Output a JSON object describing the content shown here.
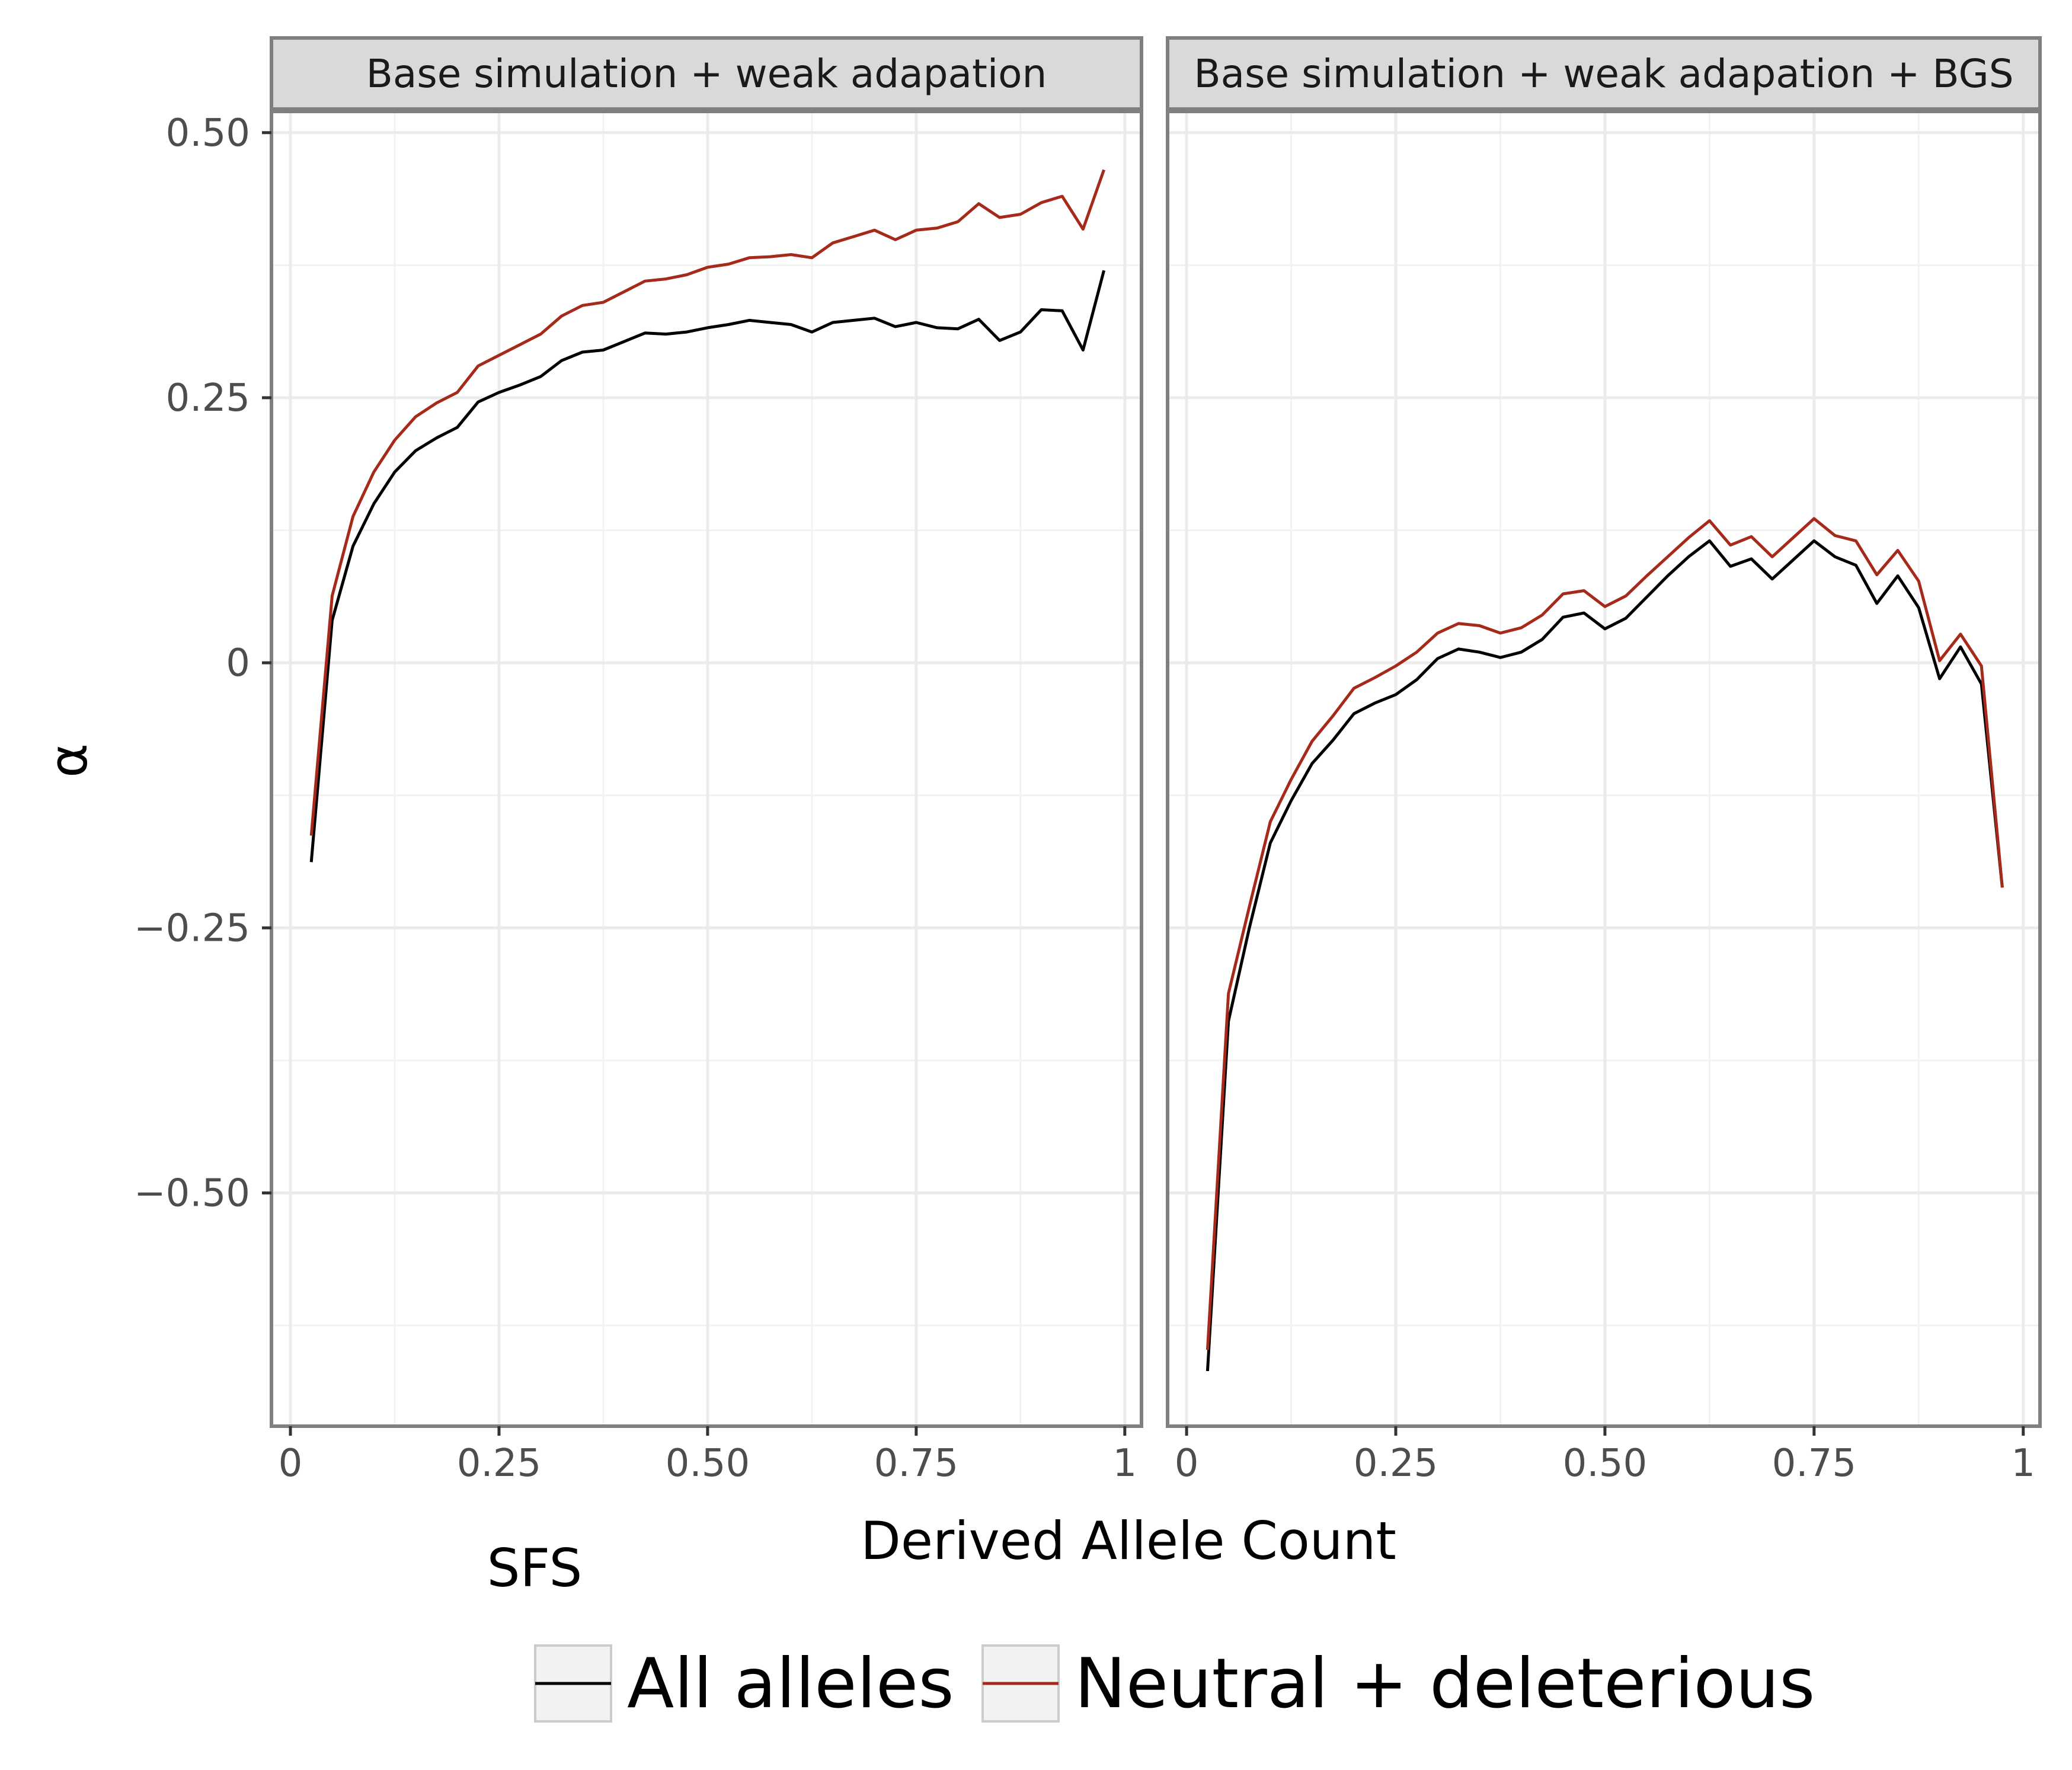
{
  "chart_data": {
    "type": "line",
    "xlabel": "Derived Allele Count",
    "ylabel": "α",
    "extra_label": "SFS",
    "xlim": [
      0,
      1
    ],
    "ylim": [
      -0.72,
      0.52
    ],
    "xticks": [
      0,
      0.25,
      0.5,
      0.75,
      1
    ],
    "xtick_labels": [
      "0",
      "0.25",
      "0.50",
      "0.75",
      "1"
    ],
    "yticks": [
      -0.5,
      -0.25,
      0,
      0.25,
      0.5
    ],
    "ytick_labels": [
      "−0.50",
      "−0.25",
      "0",
      "0.25",
      "0.50"
    ],
    "grid": true,
    "legend_position": "bottom",
    "legend": [
      {
        "name": "All alleles",
        "color": "#000000"
      },
      {
        "name": "Neutral + deleterious",
        "color": "#a52a1a"
      }
    ],
    "x": [
      0.025,
      0.05,
      0.075,
      0.1,
      0.125,
      0.15,
      0.175,
      0.2,
      0.225,
      0.25,
      0.275,
      0.3,
      0.325,
      0.35,
      0.375,
      0.4,
      0.425,
      0.45,
      0.475,
      0.5,
      0.525,
      0.55,
      0.575,
      0.6,
      0.625,
      0.65,
      0.675,
      0.7,
      0.725,
      0.75,
      0.775,
      0.8,
      0.825,
      0.85,
      0.875,
      0.9,
      0.925,
      0.95,
      0.975
    ],
    "panels": [
      {
        "title": "Base simulation + weak adapation",
        "series": [
          {
            "name": "All alleles",
            "color": "#000000",
            "values": [
              -0.188,
              0.04,
              0.11,
              0.15,
              0.18,
              0.2,
              0.212,
              0.222,
              0.246,
              0.255,
              0.262,
              0.27,
              0.285,
              0.293,
              0.295,
              0.303,
              0.311,
              0.31,
              0.312,
              0.316,
              0.319,
              0.323,
              0.321,
              0.319,
              0.312,
              0.321,
              0.323,
              0.325,
              0.317,
              0.321,
              0.316,
              0.315,
              0.324,
              0.304,
              0.312,
              0.333,
              0.332,
              0.295,
              0.37
            ]
          },
          {
            "name": "Neutral + deleterious",
            "color": "#a52a1a",
            "values": [
              -0.163,
              0.063,
              0.138,
              0.18,
              0.21,
              0.232,
              0.245,
              0.255,
              0.28,
              0.29,
              0.3,
              0.31,
              0.327,
              0.337,
              0.34,
              0.35,
              0.36,
              0.362,
              0.366,
              0.373,
              0.376,
              0.382,
              0.383,
              0.385,
              0.382,
              0.396,
              0.402,
              0.408,
              0.399,
              0.408,
              0.41,
              0.416,
              0.433,
              0.42,
              0.423,
              0.434,
              0.44,
              0.409,
              0.465
            ]
          }
        ]
      },
      {
        "title": "Base simulation + weak adapation + BGS",
        "series": [
          {
            "name": "All alleles",
            "color": "#000000",
            "values": [
              -0.668,
              -0.338,
              -0.25,
              -0.17,
              -0.13,
              -0.095,
              -0.073,
              -0.048,
              -0.038,
              -0.03,
              -0.016,
              0.004,
              0.013,
              0.01,
              0.005,
              0.01,
              0.022,
              0.043,
              0.047,
              0.032,
              0.042,
              0.062,
              0.082,
              0.1,
              0.115,
              0.091,
              0.098,
              0.079,
              0.097,
              0.115,
              0.1,
              0.092,
              0.056,
              0.082,
              0.052,
              -0.015,
              0.015,
              -0.02,
              -0.212
            ]
          },
          {
            "name": "Neutral + deleterious",
            "color": "#a52a1a",
            "values": [
              -0.648,
              -0.312,
              -0.23,
              -0.15,
              -0.11,
              -0.074,
              -0.05,
              -0.024,
              -0.014,
              -0.003,
              0.01,
              0.028,
              0.037,
              0.035,
              0.028,
              0.033,
              0.045,
              0.065,
              0.068,
              0.053,
              0.063,
              0.082,
              0.1,
              0.118,
              0.134,
              0.111,
              0.119,
              0.1,
              0.118,
              0.136,
              0.12,
              0.115,
              0.083,
              0.106,
              0.077,
              0.002,
              0.027,
              -0.003,
              -0.212
            ]
          }
        ]
      }
    ]
  }
}
